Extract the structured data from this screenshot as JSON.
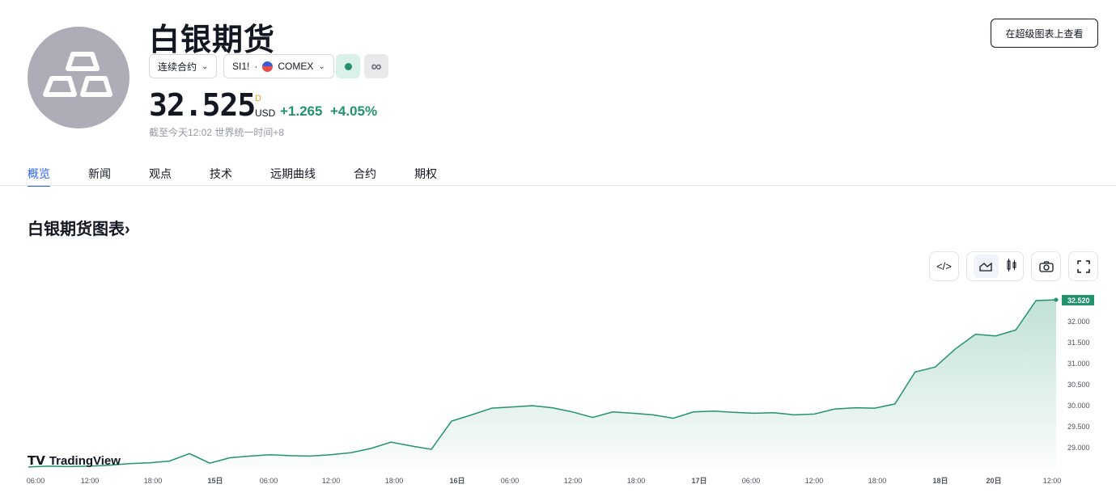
{
  "header": {
    "title": "白银期货",
    "contract_select": "连续合约",
    "symbol": "SI1!",
    "exchange": "COMEX",
    "open_button": "在超级图表上查看"
  },
  "quote": {
    "price": "32.525",
    "interval_flag": "D",
    "currency": "USD",
    "change": "+1.265",
    "change_pct": "+4.05%",
    "as_of": "截至今天12:02 世界统一时间+8",
    "status_color": "#22936e"
  },
  "tabs": [
    {
      "label": "概览",
      "active": true
    },
    {
      "label": "新闻"
    },
    {
      "label": "观点"
    },
    {
      "label": "技术"
    },
    {
      "label": "远期曲线"
    },
    {
      "label": "合约"
    },
    {
      "label": "期权"
    }
  ],
  "chart_section": {
    "title": "白银期货图表",
    "chevron": "›",
    "toolbar": [
      "code-icon",
      "area-chart-icon",
      "candles-icon",
      "camera-icon",
      "fullscreen-icon"
    ],
    "brand": "TradingView"
  },
  "chart_data": {
    "type": "area",
    "color": "#22936e",
    "last_value_label": "32.520",
    "ylim": [
      28.5,
      32.6
    ],
    "y_ticks": [
      "32.000",
      "31.500",
      "31.000",
      "30.500",
      "30.000",
      "29.500",
      "29.000"
    ],
    "x_ticks": [
      "06:00",
      "12:00",
      "18:00",
      "15日",
      "06:00",
      "12:00",
      "18:00",
      "16日",
      "06:00",
      "12:00",
      "18:00",
      "17日",
      "06:00",
      "12:00",
      "18:00",
      "18日",
      "20日",
      "12:00"
    ],
    "values": [
      28.54,
      28.56,
      28.55,
      28.56,
      28.58,
      28.62,
      28.64,
      28.68,
      28.86,
      28.63,
      28.76,
      28.8,
      28.83,
      28.81,
      28.8,
      28.83,
      28.88,
      28.98,
      29.13,
      29.04,
      28.96,
      29.63,
      29.78,
      29.94,
      29.97,
      30.0,
      29.95,
      29.85,
      29.72,
      29.85,
      29.82,
      29.78,
      29.7,
      29.85,
      29.87,
      29.84,
      29.82,
      29.83,
      29.78,
      29.8,
      29.92,
      29.95,
      29.94,
      30.04,
      30.8,
      30.92,
      31.35,
      31.7,
      31.66,
      31.8,
      32.5,
      32.52
    ]
  }
}
